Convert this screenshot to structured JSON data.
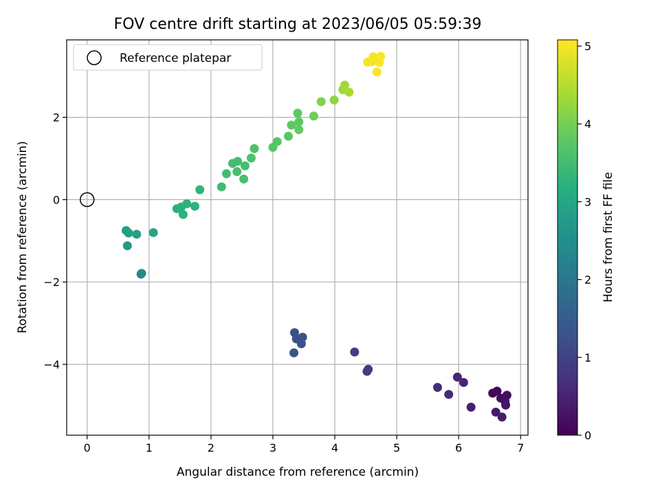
{
  "chart_data": {
    "type": "scatter",
    "title": "FOV centre drift starting at 2023/06/05 05:59:39",
    "xlabel": "Angular distance from reference (arcmin)",
    "ylabel": "Rotation from reference (arcmin)",
    "xlim": [
      -0.33,
      7.12
    ],
    "ylim": [
      -5.72,
      3.88
    ],
    "xticks": [
      "0",
      "1",
      "2",
      "3",
      "4",
      "5",
      "6",
      "7"
    ],
    "yticks": [
      "−4",
      "−2",
      "0",
      "2"
    ],
    "grid": true,
    "legend": {
      "placement": "upper-left",
      "entries": [
        "Reference platepar"
      ]
    },
    "reference_point": {
      "x": 0,
      "y": 0,
      "label": "Reference platepar"
    },
    "colorbar": {
      "label": "Hours from first FF file",
      "range": [
        0,
        5.08
      ],
      "ticks": [
        "0",
        "1",
        "2",
        "3",
        "4",
        "5"
      ],
      "colormap": "viridis"
    },
    "points": [
      {
        "x": 6.55,
        "y": -4.7,
        "h": 0.05
      },
      {
        "x": 6.62,
        "y": -4.65,
        "h": 0.1
      },
      {
        "x": 6.68,
        "y": -4.82,
        "h": 0.15
      },
      {
        "x": 6.78,
        "y": -4.75,
        "h": 0.2
      },
      {
        "x": 6.75,
        "y": -4.9,
        "h": 0.25
      },
      {
        "x": 6.76,
        "y": -4.99,
        "h": 0.3
      },
      {
        "x": 6.6,
        "y": -5.16,
        "h": 0.35
      },
      {
        "x": 6.7,
        "y": -5.28,
        "h": 0.4
      },
      {
        "x": 6.2,
        "y": -5.04,
        "h": 0.45
      },
      {
        "x": 6.08,
        "y": -4.44,
        "h": 0.5
      },
      {
        "x": 5.98,
        "y": -4.31,
        "h": 0.55
      },
      {
        "x": 5.84,
        "y": -4.73,
        "h": 0.6
      },
      {
        "x": 5.66,
        "y": -4.56,
        "h": 0.65
      },
      {
        "x": 4.54,
        "y": -4.12,
        "h": 0.85
      },
      {
        "x": 4.52,
        "y": -4.17,
        "h": 0.9
      },
      {
        "x": 4.32,
        "y": -3.7,
        "h": 0.95
      },
      {
        "x": 3.35,
        "y": -3.23,
        "h": 1.2
      },
      {
        "x": 3.38,
        "y": -3.38,
        "h": 1.22
      },
      {
        "x": 3.48,
        "y": -3.34,
        "h": 1.25
      },
      {
        "x": 3.46,
        "y": -3.5,
        "h": 1.28
      },
      {
        "x": 3.34,
        "y": -3.72,
        "h": 1.3
      },
      {
        "x": 0.88,
        "y": -1.79,
        "h": 2.35
      },
      {
        "x": 0.87,
        "y": -1.81,
        "h": 2.4
      },
      {
        "x": 0.65,
        "y": -1.12,
        "h": 2.75
      },
      {
        "x": 0.63,
        "y": -0.75,
        "h": 2.85
      },
      {
        "x": 0.67,
        "y": -0.81,
        "h": 2.88
      },
      {
        "x": 0.8,
        "y": -0.84,
        "h": 2.9
      },
      {
        "x": 1.07,
        "y": -0.8,
        "h": 2.95
      },
      {
        "x": 1.45,
        "y": -0.22,
        "h": 3.2
      },
      {
        "x": 1.52,
        "y": -0.18,
        "h": 3.22
      },
      {
        "x": 1.55,
        "y": -0.36,
        "h": 3.24
      },
      {
        "x": 1.61,
        "y": -0.1,
        "h": 3.26
      },
      {
        "x": 1.74,
        "y": -0.16,
        "h": 3.28
      },
      {
        "x": 1.82,
        "y": 0.24,
        "h": 3.3
      },
      {
        "x": 2.17,
        "y": 0.31,
        "h": 3.45
      },
      {
        "x": 2.25,
        "y": 0.63,
        "h": 3.48
      },
      {
        "x": 2.35,
        "y": 0.88,
        "h": 3.5
      },
      {
        "x": 2.43,
        "y": 0.93,
        "h": 3.52
      },
      {
        "x": 2.42,
        "y": 0.68,
        "h": 3.54
      },
      {
        "x": 2.55,
        "y": 0.82,
        "h": 3.56
      },
      {
        "x": 2.53,
        "y": 0.5,
        "h": 3.58
      },
      {
        "x": 2.65,
        "y": 1.01,
        "h": 3.6
      },
      {
        "x": 2.7,
        "y": 1.24,
        "h": 3.62
      },
      {
        "x": 3.0,
        "y": 1.27,
        "h": 3.7
      },
      {
        "x": 3.07,
        "y": 1.41,
        "h": 3.72
      },
      {
        "x": 3.25,
        "y": 1.54,
        "h": 3.75
      },
      {
        "x": 3.3,
        "y": 1.81,
        "h": 3.78
      },
      {
        "x": 3.4,
        "y": 2.1,
        "h": 3.8
      },
      {
        "x": 3.42,
        "y": 1.89,
        "h": 3.82
      },
      {
        "x": 3.42,
        "y": 1.7,
        "h": 3.84
      },
      {
        "x": 3.66,
        "y": 2.03,
        "h": 3.95
      },
      {
        "x": 3.78,
        "y": 2.38,
        "h": 4.1
      },
      {
        "x": 3.99,
        "y": 2.42,
        "h": 4.2
      },
      {
        "x": 4.13,
        "y": 2.67,
        "h": 4.3
      },
      {
        "x": 4.16,
        "y": 2.78,
        "h": 4.35
      },
      {
        "x": 4.23,
        "y": 2.61,
        "h": 4.4
      },
      {
        "x": 4.53,
        "y": 3.34,
        "h": 5.0
      },
      {
        "x": 4.6,
        "y": 3.35,
        "h": 5.0
      },
      {
        "x": 4.62,
        "y": 3.47,
        "h": 5.02
      },
      {
        "x": 4.68,
        "y": 3.1,
        "h": 5.03
      },
      {
        "x": 4.72,
        "y": 3.33,
        "h": 5.04
      },
      {
        "x": 4.74,
        "y": 3.48,
        "h": 5.05
      }
    ]
  }
}
